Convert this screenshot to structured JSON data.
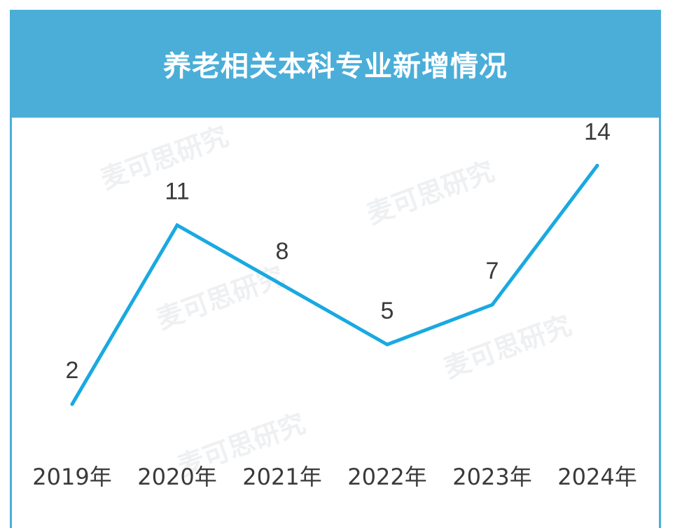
{
  "title": "养老相关本科专业新增情况",
  "watermark": "麦可思研究",
  "colors": {
    "header": "#4aaed9",
    "line": "#19a9e1",
    "text": "#3a3a3a"
  },
  "chart_data": {
    "type": "line",
    "title": "养老相关本科专业新增情况",
    "categories": [
      "2019年",
      "2020年",
      "2021年",
      "2022年",
      "2023年",
      "2024年"
    ],
    "values": [
      2,
      11,
      8,
      5,
      7,
      14
    ],
    "data_labels": [
      "2",
      "11",
      "8",
      "5",
      "7",
      "14"
    ],
    "xlabel": "",
    "ylabel": "",
    "grid": false,
    "legend": "none"
  }
}
